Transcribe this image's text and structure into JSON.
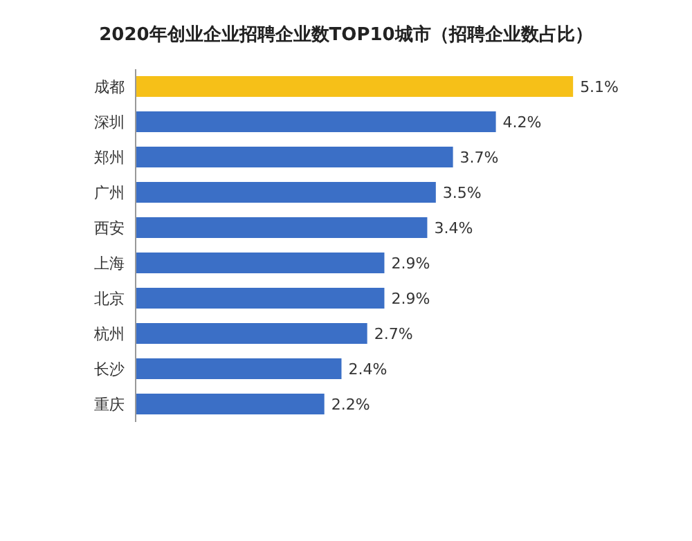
{
  "chart_data": {
    "type": "bar",
    "orientation": "horizontal",
    "title": "2020年创业企业招聘企业数TOP10城市（招聘企业数占比）",
    "categories": [
      "成都",
      "深圳",
      "郑州",
      "广州",
      "西安",
      "上海",
      "北京",
      "杭州",
      "长沙",
      "重庆"
    ],
    "values": [
      5.1,
      4.2,
      3.7,
      3.5,
      3.4,
      2.9,
      2.9,
      2.7,
      2.4,
      2.2
    ],
    "colors": [
      "#f6c018",
      "#3b6fc6",
      "#3b6fc6",
      "#3b6fc6",
      "#3b6fc6",
      "#3b6fc6",
      "#3b6fc6",
      "#3b6fc6",
      "#3b6fc6",
      "#3b6fc6"
    ],
    "value_labels": [
      "5.1%",
      "4.2%",
      "3.7%",
      "3.5%",
      "3.4%",
      "2.9%",
      "2.9%",
      "2.7%",
      "2.4%",
      "2.2%"
    ],
    "grid": false,
    "legend": false
  }
}
